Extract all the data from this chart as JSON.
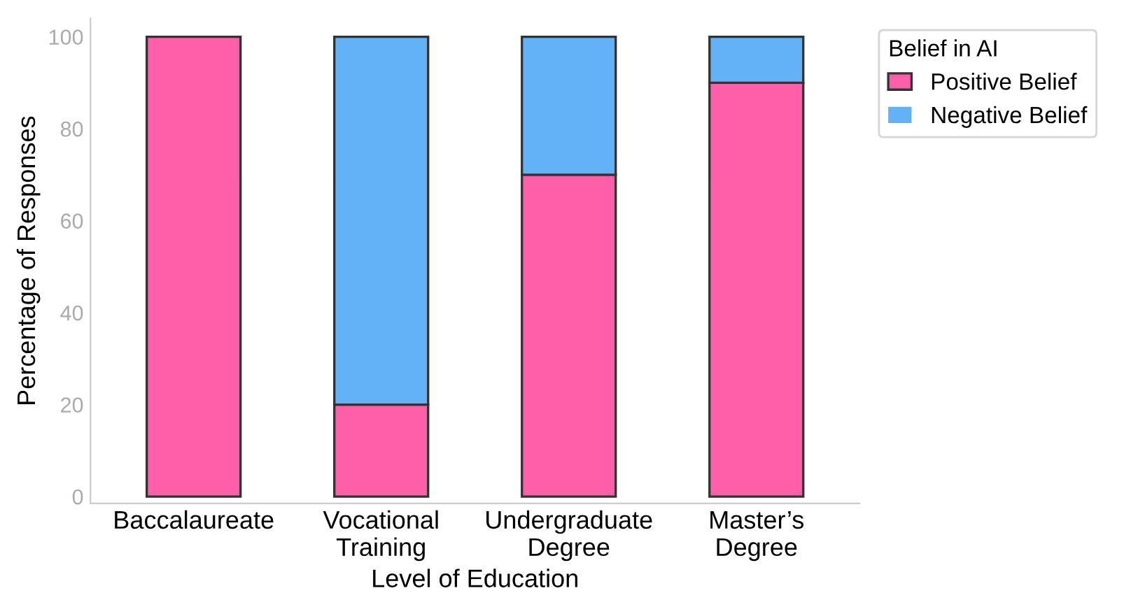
{
  "chart_data": {
    "type": "bar",
    "stacked": true,
    "xlabel": "Level of Education",
    "ylabel": "Percentage of Responses",
    "legend_title": "Belief in AI",
    "legend": "top right",
    "categories": [
      "Baccalaureate",
      "Vocational\nTraining",
      "Undergraduate\nDegree",
      "Master’s\nDegree"
    ],
    "series": [
      {
        "name": "Positive Belief",
        "color": "#ff5fa8",
        "values": [
          100,
          20,
          70,
          90
        ]
      },
      {
        "name": "Negative Belief",
        "color": "#63b1f7",
        "values": [
          0,
          80,
          30,
          10
        ]
      }
    ],
    "ylim": [
      -1.5,
      104
    ],
    "yticks": [
      0,
      20,
      40,
      60,
      80,
      100
    ],
    "grid": false
  }
}
